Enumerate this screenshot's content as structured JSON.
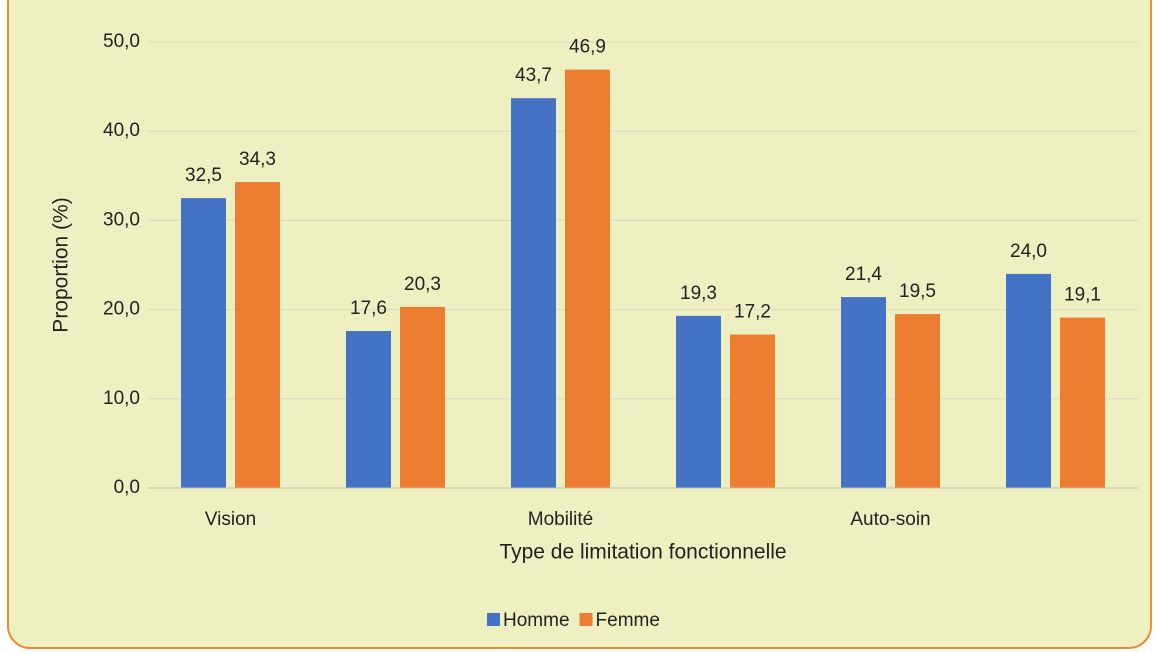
{
  "chart_data": {
    "type": "bar",
    "x_label": "Type de limitation fonctionnelle",
    "y_label": "Proportion (%)",
    "categories": [
      "Vision",
      null,
      "Mobilité",
      null,
      "Auto-soin",
      null
    ],
    "series": [
      {
        "name": "Homme",
        "color": "#4472c4",
        "values": [
          32.5,
          17.6,
          43.7,
          19.3,
          21.4,
          24.0
        ],
        "value_labels": [
          "32,5",
          "17,6",
          "43,7",
          "19,3",
          "21,4",
          "24,0"
        ]
      },
      {
        "name": "Femme",
        "color": "#ed7d31",
        "values": [
          34.3,
          20.3,
          46.9,
          17.2,
          19.5,
          19.1
        ],
        "value_labels": [
          "34,3",
          "20,3",
          "46,9",
          "17,2",
          "19,5",
          "19,1"
        ]
      }
    ],
    "ylim": [
      0,
      50
    ],
    "yticks": [
      {
        "value": 0,
        "label": "0,0"
      },
      {
        "value": 10,
        "label": "10,0"
      },
      {
        "value": 20,
        "label": "20,0"
      },
      {
        "value": 30,
        "label": "30,0"
      },
      {
        "value": 40,
        "label": "40,0"
      },
      {
        "value": 50,
        "label": "50,0"
      }
    ],
    "grid": true,
    "legend": "bottom"
  }
}
